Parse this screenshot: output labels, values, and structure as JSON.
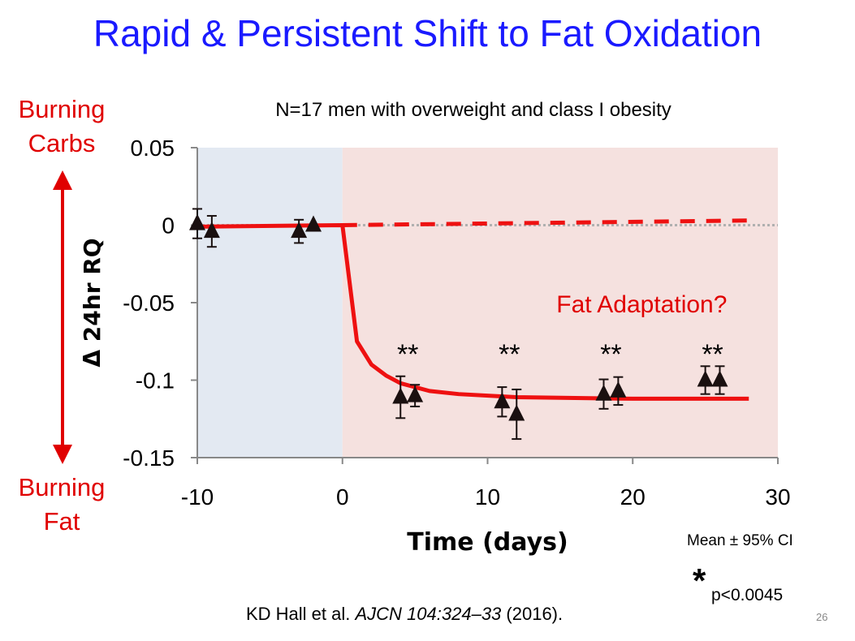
{
  "slide": {
    "title": "Rapid & Persistent Shift to Fat Oxidation",
    "subtitle": "N=17 men with overweight and class I obesity",
    "label_top": [
      "Burning",
      "Carbs"
    ],
    "label_bottom": [
      "Burning",
      "Fat"
    ],
    "citation_authors": "KD Hall et al. ",
    "citation_journal": "AJCN 104:324–33",
    "citation_year": " (2016).",
    "ci_note": "Mean ± 95% CI",
    "pvalue_star": "*",
    "pvalue": "p<0.0045",
    "page_number": "26"
  },
  "chart_data": {
    "type": "scatter",
    "title": "N=17 men with overweight and class I obesity",
    "xlabel": "Time (days)",
    "ylabel": "Δ 24hr RQ",
    "xlim": [
      -10,
      30
    ],
    "ylim": [
      -0.15,
      0.05
    ],
    "xticks": [
      "-10",
      "0",
      "10",
      "20",
      "30"
    ],
    "yticks": [
      "0.05",
      "0",
      "-0.05",
      "-0.1",
      "-0.15"
    ],
    "annotation": "Fat Adaptation?",
    "significance_marks": "**",
    "significance_x": [
      4.5,
      11.5,
      18.5,
      25.5
    ],
    "regions": [
      {
        "name": "baseline",
        "from": -10,
        "to": 0,
        "color": "#e3e9f2"
      },
      {
        "name": "intervention",
        "from": 0,
        "to": 30,
        "color": "#f5e1df"
      }
    ],
    "points": {
      "x": [
        -10,
        -9,
        -3,
        -2,
        4,
        5,
        11,
        12,
        18,
        19,
        25,
        26
      ],
      "y": [
        0.001,
        -0.004,
        -0.004,
        0.0,
        -0.111,
        -0.11,
        -0.114,
        -0.122,
        -0.109,
        -0.107,
        -0.1,
        -0.1
      ],
      "err": [
        0.0095,
        0.01,
        0.0075,
        0,
        0.0135,
        0.007,
        0.0095,
        0.016,
        0.0095,
        0.009,
        0.009,
        0.009
      ]
    },
    "model_fit": {
      "x": [
        -10,
        0,
        1,
        2,
        3,
        4,
        6,
        8,
        12,
        20,
        28
      ],
      "y": [
        -0.001,
        0,
        -0.075,
        -0.09,
        -0.097,
        -0.102,
        -0.107,
        -0.109,
        -0.111,
        -0.112,
        -0.112
      ]
    },
    "no_adaptation_line": {
      "x": [
        0,
        28
      ],
      "y": [
        0,
        0.003
      ]
    },
    "colors": {
      "fit": "#ee1111",
      "points": "#1a1010",
      "zero_line": "#b0b0b0"
    }
  }
}
